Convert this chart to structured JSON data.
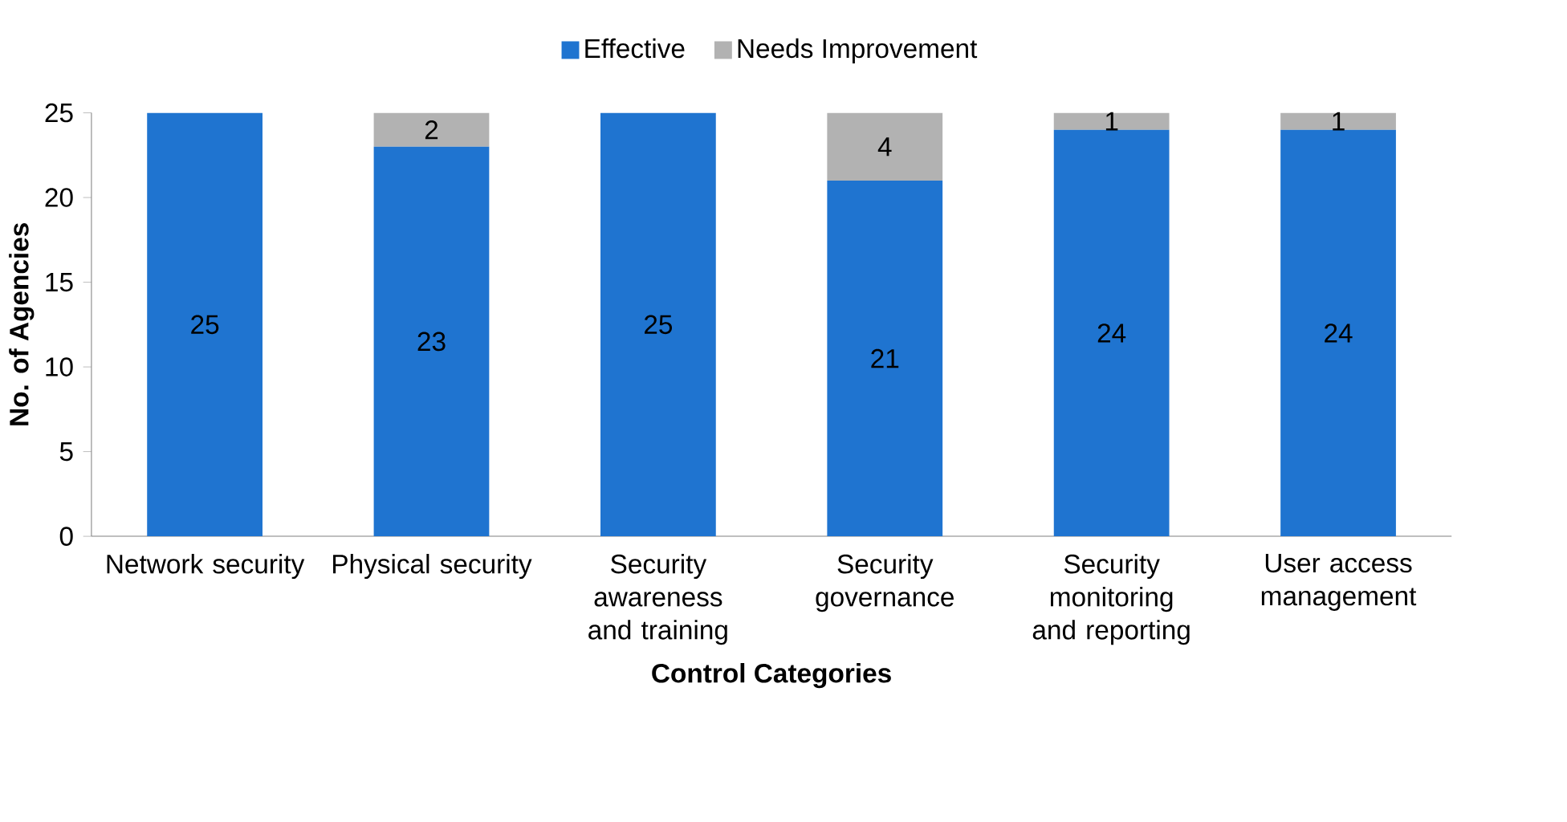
{
  "chart_data": {
    "type": "bar",
    "stacked": true,
    "xlabel": "Control Categories",
    "ylabel": "No. of Agencies",
    "categories": [
      "Network security",
      "Physical security",
      "Security awareness and training",
      "Security governance",
      "Security monitoring and reporting",
      "User access management"
    ],
    "series": [
      {
        "name": "Effective",
        "color": "#1f74d0",
        "values": [
          25,
          23,
          25,
          21,
          24,
          24
        ]
      },
      {
        "name": "Needs Improvement",
        "color": "#b2b2b2",
        "values": [
          null,
          2,
          null,
          4,
          1,
          1
        ]
      }
    ],
    "ylim": [
      0,
      25
    ],
    "yticks": [
      0,
      5,
      10,
      15,
      20,
      25
    ],
    "grid": false,
    "legend": "top",
    "data_labels": true
  }
}
